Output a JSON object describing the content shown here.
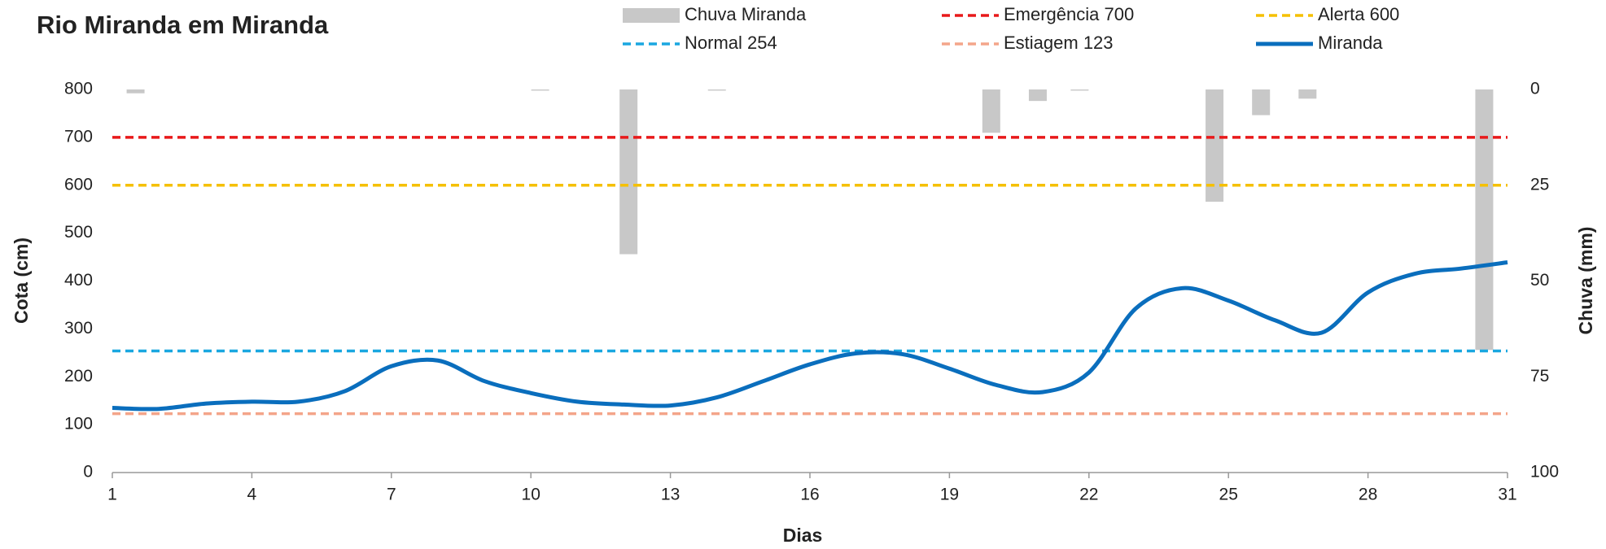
{
  "chart_data": {
    "type": "combo",
    "title": "Rio Miranda em Miranda",
    "xlabel": "Dias",
    "ylabel": "Cota (cm)",
    "y2label": "Chuva (mm)",
    "xlim": [
      1,
      31
    ],
    "xticks": [
      1,
      4,
      7,
      10,
      13,
      16,
      19,
      22,
      25,
      28,
      31
    ],
    "ylim": [
      0,
      800
    ],
    "yticks": [
      0,
      100,
      200,
      300,
      400,
      500,
      600,
      700,
      800
    ],
    "y2lim": [
      100,
      0
    ],
    "y2ticks": [
      0,
      25,
      50,
      75,
      100
    ],
    "grid": false,
    "series": [
      {
        "name": "Chuva Miranda",
        "type": "bar",
        "axis": "y2",
        "color": "#c8c8c8",
        "x": [
          1.5,
          10.2,
          12.1,
          14.0,
          19.9,
          20.9,
          21.8,
          24.7,
          25.7,
          26.7,
          30.5
        ],
        "values": [
          1,
          0.3,
          43,
          0.3,
          11.3,
          3,
          0.3,
          29.3,
          6.7,
          2.4,
          68
        ]
      },
      {
        "name": "Emergência 700",
        "type": "hline",
        "color": "#e8191a",
        "values": [
          700
        ]
      },
      {
        "name": "Alerta 600",
        "type": "hline",
        "color": "#f5c000",
        "values": [
          600
        ]
      },
      {
        "name": "Normal  254",
        "type": "hline",
        "color": "#1aa7e0",
        "values": [
          254
        ]
      },
      {
        "name": "Estiagem 123",
        "type": "hline",
        "color": "#f4a58a",
        "values": [
          123
        ]
      },
      {
        "name": "Miranda",
        "type": "line",
        "color": "#0a6ebd",
        "x": [
          1,
          2,
          3,
          4,
          5,
          6,
          7,
          8,
          9,
          10,
          11,
          12,
          13,
          14,
          15,
          16,
          17,
          18,
          19,
          20,
          21,
          22,
          23,
          24,
          25,
          26,
          27,
          28,
          29,
          30,
          31
        ],
        "values": [
          135,
          133,
          144,
          148,
          148,
          170,
          222,
          234,
          191,
          166,
          148,
          142,
          140,
          157,
          191,
          226,
          249,
          247,
          217,
          183,
          168,
          209,
          342,
          385,
          359,
          318,
          292,
          376,
          415,
          426,
          439
        ]
      }
    ]
  }
}
